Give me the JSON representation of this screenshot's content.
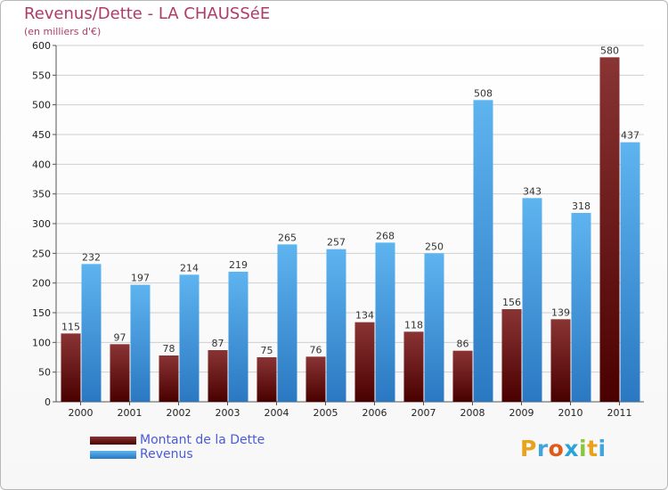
{
  "chart_data": {
    "type": "bar",
    "title": "Revenus/Dette - LA CHAUSSéE",
    "subtitle": "(en milliers d'€)",
    "xlabel": "",
    "ylabel": "",
    "categories": [
      "2000",
      "2001",
      "2002",
      "2003",
      "2004",
      "2005",
      "2006",
      "2007",
      "2008",
      "2009",
      "2010",
      "2011"
    ],
    "series": [
      {
        "name": "Montant de la Dette",
        "values": [
          115,
          97,
          78,
          87,
          75,
          76,
          134,
          118,
          86,
          156,
          139,
          580
        ],
        "color": "#7a1c1c"
      },
      {
        "name": "Revenus",
        "values": [
          232,
          197,
          214,
          219,
          265,
          257,
          268,
          250,
          508,
          343,
          318,
          437
        ],
        "color": "#4ea6e6"
      }
    ],
    "ylim": [
      0,
      600
    ],
    "yticks": [
      0,
      50,
      100,
      150,
      200,
      250,
      300,
      350,
      400,
      450,
      500,
      550,
      600
    ],
    "grid": true,
    "legend_placement": "bottom-left"
  },
  "logo": {
    "letters": [
      "P",
      "r",
      "o",
      "x",
      "i",
      "t",
      "i"
    ],
    "colors": [
      "#e8a21c",
      "#3fa4e0",
      "#e05a1c",
      "#2aa3d9",
      "#8cc63f",
      "#e8a21c",
      "#3fa4e0"
    ]
  }
}
